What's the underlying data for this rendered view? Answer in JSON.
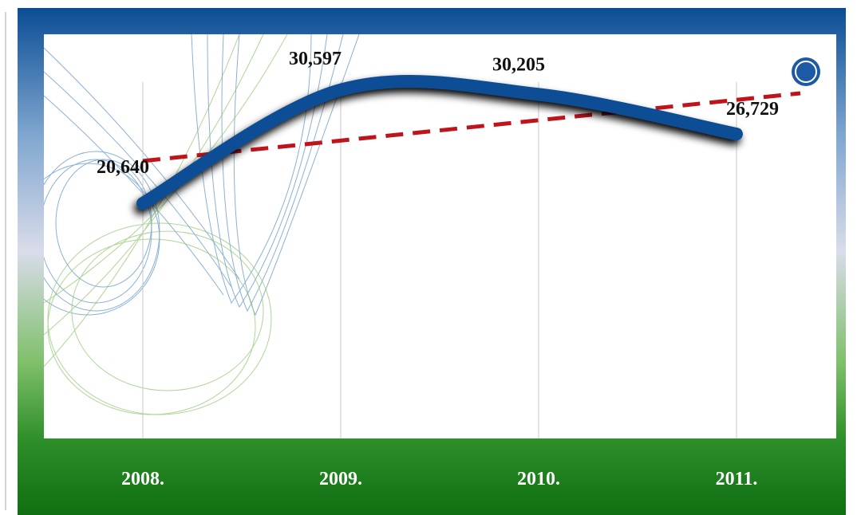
{
  "chart_data": {
    "type": "line",
    "categories": [
      "2008.",
      "2009.",
      "2010.",
      "2011."
    ],
    "values": [
      20640,
      30597,
      30205,
      26729
    ],
    "value_labels": [
      "20,640",
      "30,597",
      "30,205",
      "26,729"
    ],
    "color": "#0d4e96",
    "trendline": true,
    "trendline_color": "#c0141c",
    "grid": true
  }
}
